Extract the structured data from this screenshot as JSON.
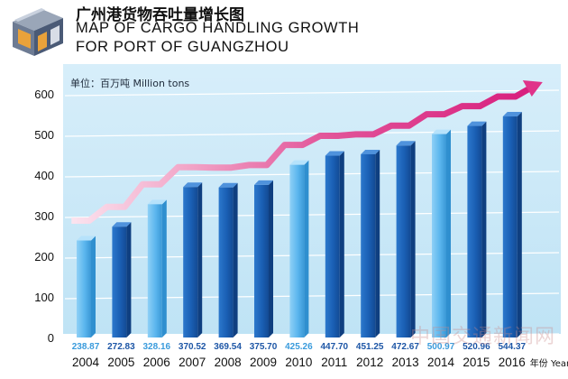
{
  "header": {
    "title_cn": "广州港货物吞吐量增长图",
    "title_en_line1": "MAP OF CARGO HANDLING GROWTH",
    "title_en_line2": "FOR PORT OF GUANGZHOU",
    "icon": "port-warehouse-icon"
  },
  "watermark": "中国交通新闻网",
  "colors": {
    "bar_dark": "#1a5fb4",
    "bar_light": "#5bb6ee",
    "panel": "#cbe8f7",
    "trend": "#e0338a",
    "value_light": "#3a9bdc",
    "value_dark": "#1d56a6"
  },
  "chart_data": {
    "type": "bar",
    "unit_label": "单位：百万吨 Million tons",
    "x_unit_label": "年份 Year",
    "categories": [
      "2004",
      "2005",
      "2006",
      "2007",
      "2008",
      "2009",
      "2010",
      "2011",
      "2012",
      "2013",
      "2014",
      "2015",
      "2016"
    ],
    "values": [
      238.87,
      272.83,
      328.16,
      370.52,
      369.54,
      375.7,
      425.26,
      447.7,
      451.25,
      472.67,
      500.97,
      520.96,
      544.37
    ],
    "value_labels": [
      "238.87",
      "272.83",
      "328.16",
      "370.52",
      "369.54",
      "375.70",
      "425.26",
      "447.70",
      "451.25",
      "472.67",
      "500.97",
      "520.96",
      "544.37"
    ],
    "highlight_indices": [
      0,
      2,
      6,
      10
    ],
    "y_ticks": [
      "0",
      "100",
      "200",
      "300",
      "400",
      "500",
      "600"
    ],
    "ylim": [
      0,
      600
    ],
    "trend_line": "arrow",
    "grid": true
  }
}
